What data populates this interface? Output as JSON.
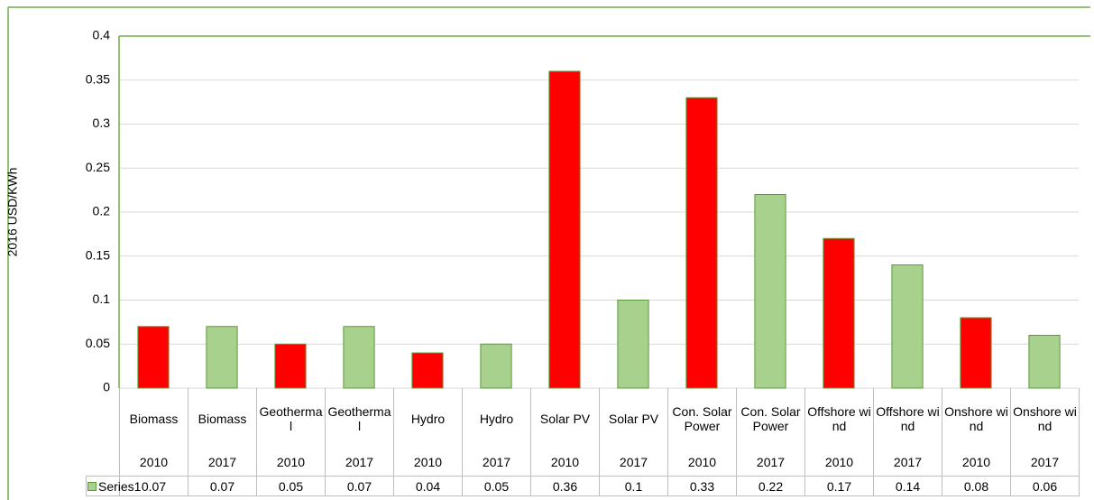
{
  "chart_data": {
    "type": "bar",
    "ylabel": "2016 USD/KWh",
    "categories": [
      [
        "Biomass",
        "2010"
      ],
      [
        "Biomass",
        "2017"
      ],
      [
        "Geothermal",
        "2010"
      ],
      [
        "Geothermal",
        "2017"
      ],
      [
        "Hydro",
        "2010"
      ],
      [
        "Hydro",
        "2017"
      ],
      [
        "Solar PV",
        "2010"
      ],
      [
        "Solar PV",
        "2017"
      ],
      [
        "Con. Solar Power",
        "2010"
      ],
      [
        "Con. Solar Power",
        "2017"
      ],
      [
        "Offshore wind",
        "2010"
      ],
      [
        "Offshore wind",
        "2017"
      ],
      [
        "Onshore wind",
        "2010"
      ],
      [
        "Onshore wind",
        "2017"
      ]
    ],
    "series": [
      {
        "name": "Series1",
        "color": "#a9d18e",
        "values": [
          0.07,
          0.07,
          0.05,
          0.07,
          0.04,
          0.05,
          0.36,
          0.1,
          0.33,
          0.22,
          0.17,
          0.14,
          0.08,
          0.06
        ],
        "point_colors": [
          "#ff0000",
          "#a9d18e",
          "#ff0000",
          "#a9d18e",
          "#ff0000",
          "#a9d18e",
          "#ff0000",
          "#a9d18e",
          "#ff0000",
          "#a9d18e",
          "#ff0000",
          "#a9d18e",
          "#ff0000",
          "#a9d18e"
        ]
      }
    ],
    "ylim": [
      0,
      0.4
    ],
    "yticks": [
      0,
      0.05,
      0.1,
      0.15,
      0.2,
      0.25,
      0.3,
      0.35,
      0.4
    ],
    "grid": true,
    "data_table": true
  }
}
